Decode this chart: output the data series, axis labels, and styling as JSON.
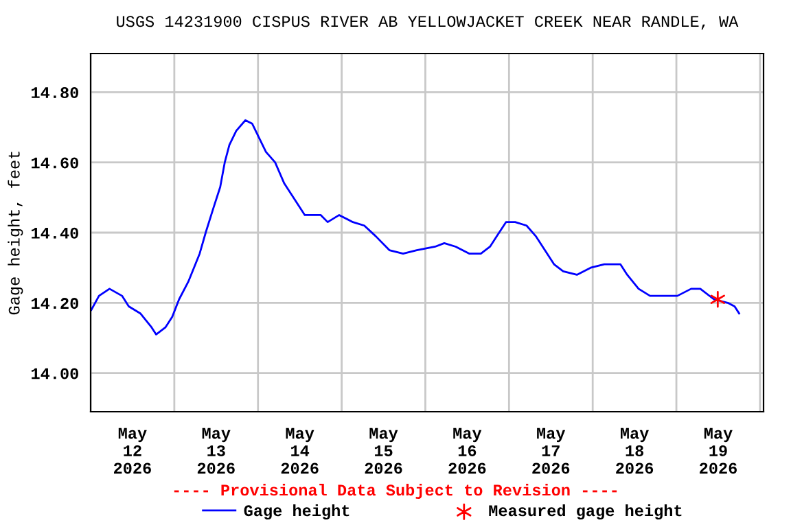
{
  "chart_data": {
    "type": "line",
    "title": "USGS 14231900 CISPUS RIVER AB YELLOWJACKET CREEK NEAR RANDLE, WA",
    "ylabel": "Gage height, feet",
    "annotations": [
      "---- Provisional Data Subject to Revision ----"
    ],
    "series": [
      {
        "name": "Gage height",
        "color": "#0000ff",
        "marker": "none",
        "line_style": "solid",
        "x": [
          "2026-05-12T00:12",
          "2026-05-12T02:24",
          "2026-05-12T05:25",
          "2026-05-12T09:00",
          "2026-05-12T10:56",
          "2026-05-12T14:15",
          "2026-05-12T17:30",
          "2026-05-12T18:48",
          "2026-05-12T21:26",
          "2026-05-12T23:24",
          "2026-05-13T01:22",
          "2026-05-13T04:00",
          "2026-05-13T07:16",
          "2026-05-13T09:00",
          "2026-05-13T11:13",
          "2026-05-13T13:10",
          "2026-05-13T14:28",
          "2026-05-13T15:48",
          "2026-05-13T17:46",
          "2026-05-13T20:23",
          "2026-05-13T22:21",
          "2026-05-14T00:19",
          "2026-05-14T02:17",
          "2026-05-14T04:55",
          "2026-05-14T07:32",
          "2026-05-14T10:09",
          "2026-05-14T13:26",
          "2026-05-14T15:24",
          "2026-05-14T18:01",
          "2026-05-14T19:59",
          "2026-05-14T23:17",
          "2026-05-15T03:13",
          "2026-05-15T06:29",
          "2026-05-15T09:45",
          "2026-05-15T13:41",
          "2026-05-15T17:37",
          "2026-05-15T21:33",
          "2026-05-16T02:48",
          "2026-05-16T05:26",
          "2026-05-16T08:43",
          "2026-05-16T12:39",
          "2026-05-16T15:55",
          "2026-05-16T18:33",
          "2026-05-16T20:31",
          "2026-05-16T23:08",
          "2026-05-17T01:46",
          "2026-05-17T05:02",
          "2026-05-17T07:40",
          "2026-05-17T10:17",
          "2026-05-17T12:54",
          "2026-05-17T15:32",
          "2026-05-17T19:28",
          "2026-05-17T23:24",
          "2026-05-18T03:20",
          "2026-05-18T07:56",
          "2026-05-18T09:54",
          "2026-05-18T13:10",
          "2026-05-18T16:26",
          "2026-05-18T20:22",
          "2026-05-19T00:18",
          "2026-05-19T04:14",
          "2026-05-19T06:52",
          "2026-05-19T10:48",
          "2026-05-19T14:44",
          "2026-05-19T16:42",
          "2026-05-19T18:00"
        ],
        "values": [
          14.18,
          14.22,
          14.24,
          14.22,
          14.19,
          14.17,
          14.13,
          14.11,
          14.13,
          14.16,
          14.21,
          14.26,
          14.34,
          14.4,
          14.47,
          14.53,
          14.6,
          14.65,
          14.69,
          14.72,
          14.71,
          14.67,
          14.63,
          14.6,
          14.54,
          14.5,
          14.45,
          14.45,
          14.45,
          14.43,
          14.45,
          14.43,
          14.42,
          14.39,
          14.35,
          14.34,
          14.35,
          14.36,
          14.37,
          14.36,
          14.34,
          14.34,
          14.36,
          14.39,
          14.43,
          14.43,
          14.42,
          14.39,
          14.35,
          14.31,
          14.29,
          14.28,
          14.3,
          14.31,
          14.31,
          14.28,
          14.24,
          14.22,
          14.22,
          14.22,
          14.24,
          14.24,
          14.21,
          14.2,
          14.19,
          14.17
        ]
      },
      {
        "name": "Measured gage height",
        "type": "scatter",
        "color": "#ff0000",
        "marker": "cross",
        "x": [
          "2026-05-19T11:52"
        ],
        "values": [
          14.21
        ]
      }
    ],
    "xlim": [
      "2026-05-12T00:00",
      "2026-05-20T01:00"
    ],
    "xticks": [
      {
        "value": "2026-05-12T00:00",
        "label": null
      },
      {
        "value": "2026-05-12T12:00",
        "label": "May\n12\n2026"
      },
      {
        "value": "2026-05-13T00:00",
        "label": null
      },
      {
        "value": "2026-05-13T12:00",
        "label": "May\n13\n2026"
      },
      {
        "value": "2026-05-14T00:00",
        "label": null
      },
      {
        "value": "2026-05-14T12:00",
        "label": "May\n14\n2026"
      },
      {
        "value": "2026-05-15T00:00",
        "label": null
      },
      {
        "value": "2026-05-15T12:00",
        "label": "May\n15\n2026"
      },
      {
        "value": "2026-05-16T00:00",
        "label": null
      },
      {
        "value": "2026-05-16T12:00",
        "label": "May\n16\n2026"
      },
      {
        "value": "2026-05-17T00:00",
        "label": null
      },
      {
        "value": "2026-05-17T12:00",
        "label": "May\n17\n2026"
      },
      {
        "value": "2026-05-18T00:00",
        "label": null
      },
      {
        "value": "2026-05-18T12:00",
        "label": "May\n18\n2026"
      },
      {
        "value": "2026-05-19T00:00",
        "label": null
      },
      {
        "value": "2026-05-19T12:00",
        "label": "May\n19\n2026"
      },
      {
        "value": "2026-05-20T00:00",
        "label": null
      }
    ],
    "ylim": [
      13.89,
      14.91
    ],
    "yticks": [
      {
        "value": 14.0,
        "label": "14.00"
      },
      {
        "value": 14.2,
        "label": "14.20"
      },
      {
        "value": 14.4,
        "label": "14.40"
      },
      {
        "value": 14.6,
        "label": "14.60"
      },
      {
        "value": 14.8,
        "label": "14.80"
      }
    ],
    "grid": true,
    "legend": "bottom"
  }
}
